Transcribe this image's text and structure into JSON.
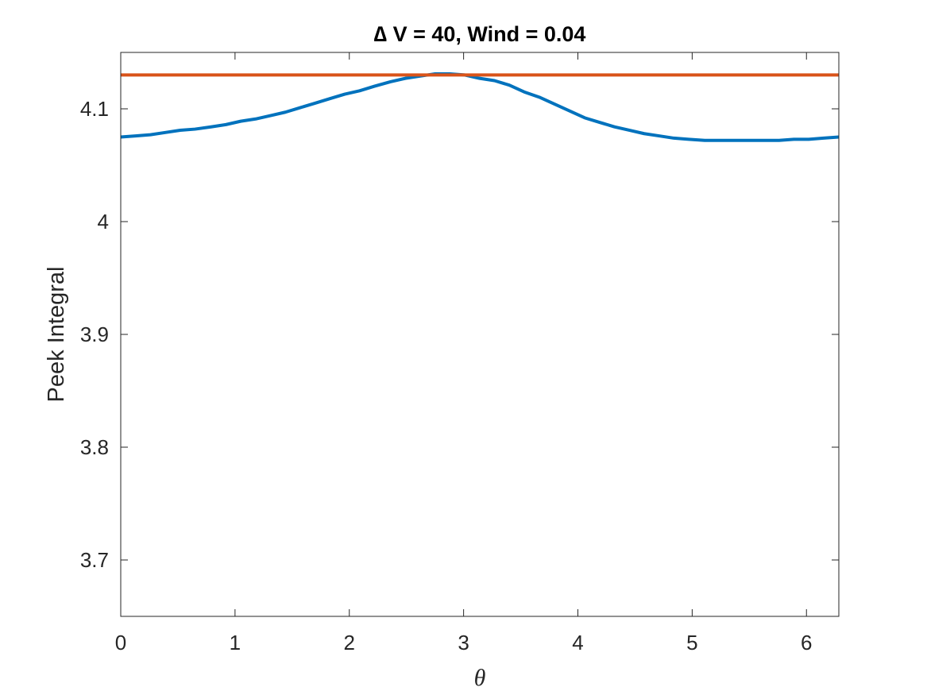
{
  "chart_data": {
    "type": "line",
    "title": "∆ V = 40, Wind = 0.04",
    "xlabel": "θ",
    "ylabel": "Peek Integral",
    "xlim": [
      0,
      6.2832
    ],
    "ylim": [
      3.65,
      4.15
    ],
    "xticks": [
      0,
      1,
      2,
      3,
      4,
      5,
      6
    ],
    "xtick_labels": [
      "0",
      "1",
      "2",
      "3",
      "4",
      "5",
      "6"
    ],
    "yticks": [
      3.7,
      3.8,
      3.9,
      4,
      4.1
    ],
    "ytick_labels": [
      "3.7",
      "3.8",
      "3.9",
      "4",
      "4.1"
    ],
    "grid": false,
    "series": [
      {
        "color": "#0072BD",
        "x": [
          0,
          0.13,
          0.26,
          0.39,
          0.52,
          0.65,
          0.79,
          0.92,
          1.05,
          1.18,
          1.31,
          1.44,
          1.57,
          1.7,
          1.83,
          1.96,
          2.09,
          2.22,
          2.36,
          2.49,
          2.62,
          2.75,
          2.88,
          3.01,
          3.14,
          3.27,
          3.4,
          3.53,
          3.67,
          3.8,
          3.93,
          4.06,
          4.19,
          4.32,
          4.45,
          4.58,
          4.71,
          4.84,
          4.97,
          5.11,
          5.24,
          5.37,
          5.5,
          5.63,
          5.76,
          5.89,
          6.02,
          6.15,
          6.2832
        ],
        "y": [
          4.075,
          4.076,
          4.077,
          4.079,
          4.081,
          4.082,
          4.084,
          4.086,
          4.089,
          4.091,
          4.094,
          4.097,
          4.101,
          4.105,
          4.109,
          4.113,
          4.116,
          4.12,
          4.124,
          4.127,
          4.129,
          4.131,
          4.131,
          4.13,
          4.127,
          4.125,
          4.121,
          4.115,
          4.11,
          4.104,
          4.098,
          4.092,
          4.088,
          4.084,
          4.081,
          4.078,
          4.076,
          4.074,
          4.073,
          4.072,
          4.072,
          4.072,
          4.072,
          4.072,
          4.072,
          4.073,
          4.073,
          4.074,
          4.075
        ]
      },
      {
        "color": "#D95319",
        "x": [
          0,
          6.2832
        ],
        "y": [
          4.13,
          4.13
        ]
      }
    ]
  }
}
